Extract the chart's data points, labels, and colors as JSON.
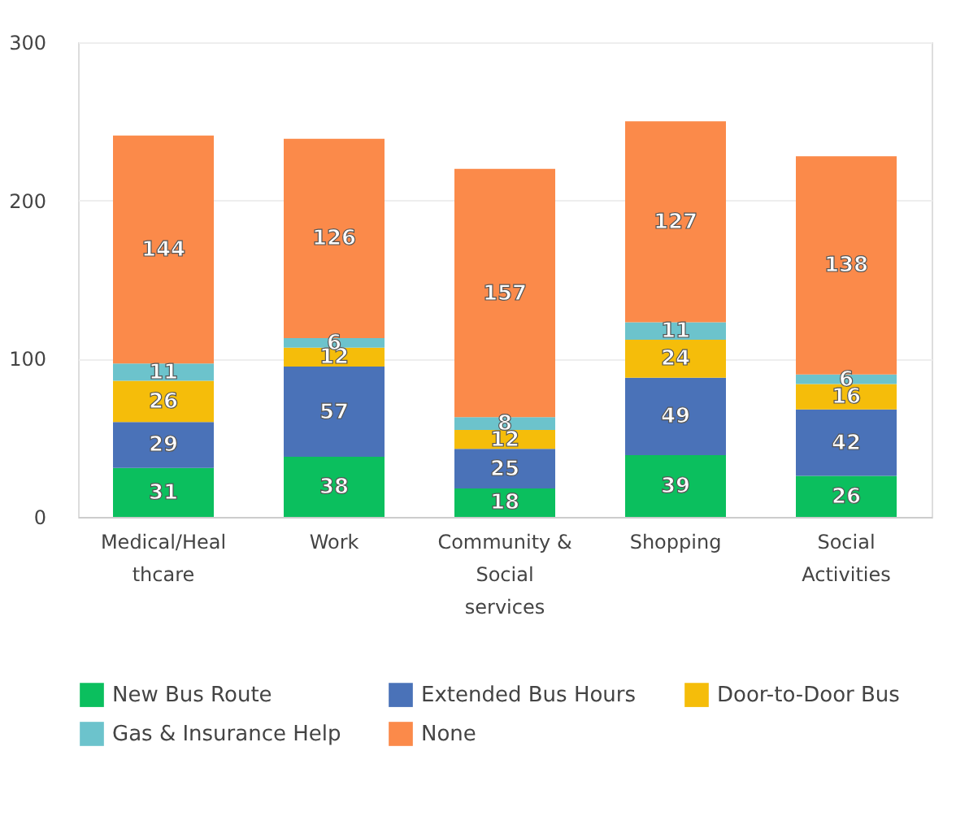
{
  "chart_data": {
    "type": "bar",
    "stacked": true,
    "categories": [
      "Medical/Healthcare",
      "Work",
      "Community & Social services",
      "Shopping",
      "Social Activities"
    ],
    "series": [
      {
        "name": "New Bus Route",
        "color": "#0bbf5e",
        "values": [
          31,
          38,
          18,
          39,
          26
        ]
      },
      {
        "name": "Extended Bus Hours",
        "color": "#4a72b8",
        "values": [
          29,
          57,
          25,
          49,
          42
        ]
      },
      {
        "name": "Door-to-Door Bus",
        "color": "#f5bd0a",
        "values": [
          26,
          12,
          12,
          24,
          16
        ]
      },
      {
        "name": "Gas & Insurance Help",
        "color": "#6cc3cc",
        "values": [
          11,
          6,
          8,
          11,
          6
        ]
      },
      {
        "name": "None",
        "color": "#fb8a4a",
        "values": [
          144,
          126,
          157,
          127,
          138
        ]
      }
    ],
    "ylim": [
      0,
      300
    ],
    "yticks": [
      0,
      100,
      200,
      300
    ],
    "grid": "y",
    "legend": "bottom",
    "data_labels": true
  }
}
